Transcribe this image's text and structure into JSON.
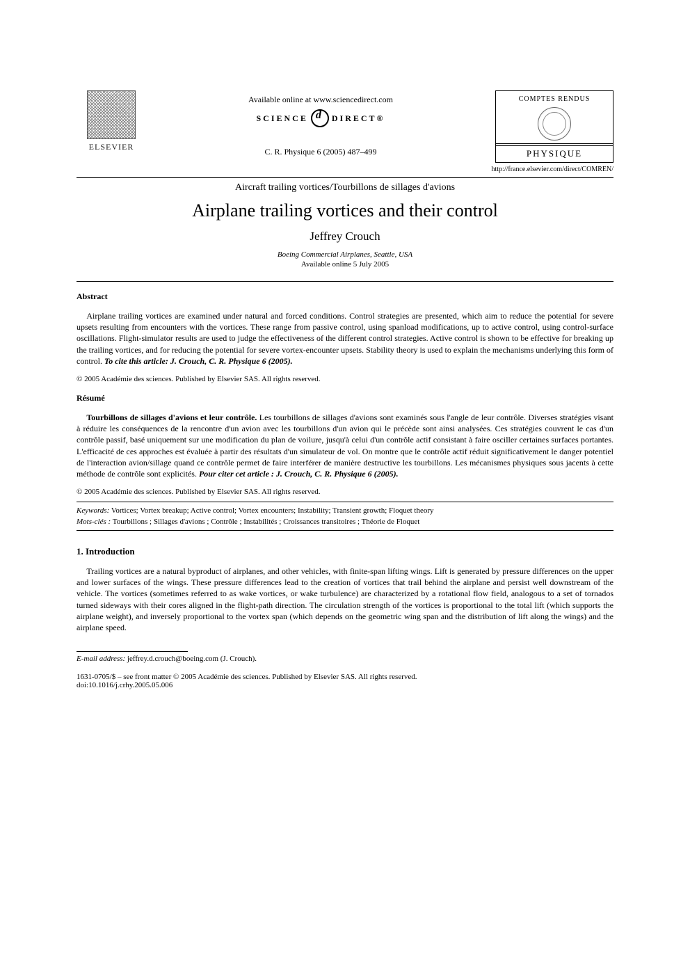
{
  "header": {
    "elsevier_label": "ELSEVIER",
    "available_online": "Available online at www.sciencedirect.com",
    "sd_left": "SCIENCE",
    "sd_right": "DIRECT®",
    "citation": "C. R. Physique 6 (2005) 487–499",
    "cr_top": "COMPTES RENDUS",
    "cr_bottom": "PHYSIQUE",
    "journal_url": "http://france.elsevier.com/direct/COMREN/"
  },
  "section_line": "Aircraft trailing vortices/Tourbillons de sillages d'avions",
  "title": "Airplane trailing vortices and their control",
  "author": "Jeffrey Crouch",
  "affiliation": "Boeing Commercial Airplanes, Seattle, USA",
  "available_date": "Available online 5 July 2005",
  "abstract": {
    "heading": "Abstract",
    "body": "Airplane trailing vortices are examined under natural and forced conditions. Control strategies are presented, which aim to reduce the potential for severe upsets resulting from encounters with the vortices. These range from passive control, using spanload modifications, up to active control, using control-surface oscillations. Flight-simulator results are used to judge the effectiveness of the different control strategies. Active control is shown to be effective for breaking up the trailing vortices, and for reducing the potential for severe vortex-encounter upsets. Stability theory is used to explain the mechanisms underlying this form of control. ",
    "cite": "To cite this article: J. Crouch, C. R. Physique 6 (2005).",
    "copyright": "© 2005 Académie des sciences. Published by Elsevier SAS. All rights reserved."
  },
  "resume": {
    "heading": "Résumé",
    "title_inline": "Tourbillons de sillages d'avions et leur contrôle.",
    "body": " Les tourbillons de sillages d'avions sont examinés sous l'angle de leur contrôle. Diverses stratégies visant à réduire les conséquences de la rencontre d'un avion avec les tourbillons d'un avion qui le précède sont ainsi analysées. Ces stratégies couvrent le cas d'un contrôle passif, basé uniquement sur une modification du plan de voilure, jusqu'à celui d'un contrôle actif consistant à faire osciller certaines surfaces portantes. L'efficacité de ces approches est évaluée à partir des résultats d'un simulateur de vol. On montre que le contrôle actif réduit significativement le danger potentiel de l'interaction avion/sillage quand ce contrôle permet de faire interférer de manière destructive les tourbillons. Les mécanismes physiques sous jacents à cette méthode de contrôle sont explicités. ",
    "cite": "Pour citer cet article : J. Crouch, C. R. Physique 6 (2005).",
    "copyright": "© 2005 Académie des sciences. Published by Elsevier SAS. All rights reserved."
  },
  "keywords": {
    "label_en": "Keywords:",
    "text_en": " Vortices; Vortex breakup; Active control; Vortex encounters; Instability; Transient growth; Floquet theory",
    "label_fr": "Mots-clés :",
    "text_fr": " Tourbillons ; Sillages d'avions ; Contrôle ; Instabilités ; Croissances transitoires ; Théorie de Floquet"
  },
  "intro": {
    "heading": "1.  Introduction",
    "para1": "Trailing vortices are a natural byproduct of airplanes, and other vehicles, with finite-span lifting wings. Lift is generated by pressure differences on the upper and lower surfaces of the wings. These pressure differences lead to the creation of vortices that trail behind the airplane and persist well downstream of the vehicle. The vortices (sometimes referred to as wake vortices, or wake turbulence) are characterized by a rotational flow field, analogous to a set of tornados turned sideways with their cores aligned in the flight-path direction. The circulation strength of the vortices is proportional to the total lift (which supports the airplane weight), and inversely proportional to the vortex span (which depends on the geometric wing span and the distribution of lift along the wings) and the airplane speed."
  },
  "footnote": {
    "email_label": "E-mail address:",
    "email": " jeffrey.d.crouch@boeing.com (J. Crouch)."
  },
  "front_matter": "1631-0705/$ – see front matter © 2005 Académie des sciences. Published by Elsevier SAS. All rights reserved.",
  "doi": "doi:10.1016/j.crhy.2005.05.006",
  "colors": {
    "text": "#000000",
    "background": "#ffffff",
    "rule": "#000000"
  },
  "typography": {
    "body_pt": 12,
    "title_pt": 26,
    "author_pt": 17,
    "small_pt": 11,
    "family": "Times New Roman"
  }
}
